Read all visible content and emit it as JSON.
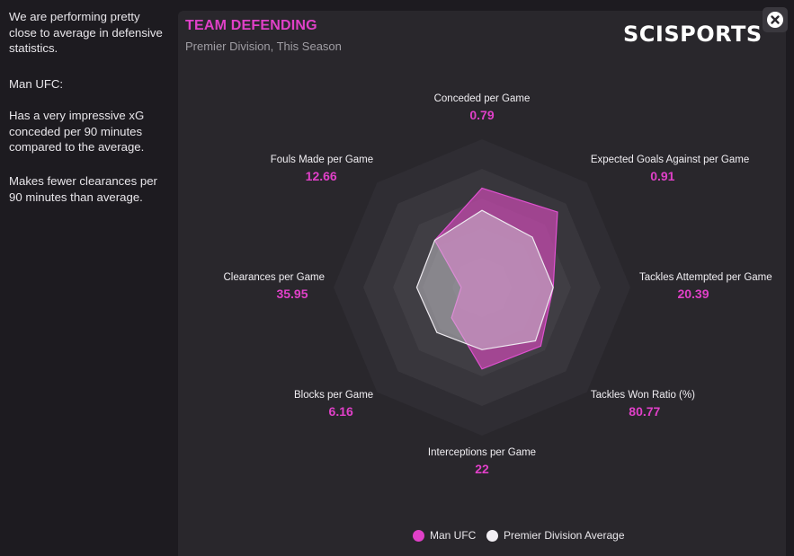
{
  "sidebar": {
    "paragraphs": [
      "We are performing pretty close to average in defensive statistics.",
      "Man UFC:",
      "Has a very impressive xG conceded per 90 minutes compared to the average.",
      "Makes fewer clearances per 90 minutes than average."
    ]
  },
  "panel": {
    "title": "TEAM DEFENDING",
    "subtitle": "Premier Division, This Season",
    "brand": "SCISPORTS",
    "close_icon": "close-icon"
  },
  "colors": {
    "accent": "#e040c8",
    "team_fill": "#c84ab0",
    "average_fill": "#d8d4dc",
    "panel_bg": "#29272c",
    "page_bg": "#1d1b20"
  },
  "chart_data": {
    "type": "radar",
    "title": "TEAM DEFENDING",
    "subtitle": "Premier Division, This Season",
    "axes": [
      {
        "label": "Conceded per Game",
        "value": "0.79"
      },
      {
        "label": "Expected Goals Against per Game",
        "value": "0.91"
      },
      {
        "label": "Tackles Attempted per Game",
        "value": "20.39"
      },
      {
        "label": "Tackles Won Ratio (%)",
        "value": "80.77"
      },
      {
        "label": "Interceptions per Game",
        "value": "22"
      },
      {
        "label": "Blocks per Game",
        "value": "6.16"
      },
      {
        "label": "Clearances per Game",
        "value": "35.95"
      },
      {
        "label": "Fouls Made per Game",
        "value": "12.66"
      }
    ],
    "series": [
      {
        "name": "Man UFC",
        "color": "#c84ab0",
        "normalized": [
          0.67,
          0.72,
          0.48,
          0.56,
          0.55,
          0.29,
          0.14,
          0.45
        ]
      },
      {
        "name": "Premier Division Average",
        "color": "#d8d4dc",
        "normalized": [
          0.52,
          0.48,
          0.48,
          0.51,
          0.42,
          0.43,
          0.44,
          0.45
        ]
      }
    ],
    "rings": 5,
    "legend_position": "bottom"
  }
}
